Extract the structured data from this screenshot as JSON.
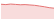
{
  "chart_data": {
    "type": "line",
    "categories": [
      null,
      null,
      null,
      null,
      null,
      null,
      null,
      null,
      null,
      null,
      null,
      null
    ],
    "values": [
      8.2,
      8.0,
      8.3,
      8.1,
      7.9,
      8.0,
      7.8,
      7.6,
      7.2,
      6.8,
      6.3,
      6.0
    ],
    "color": "#e57373",
    "ylim": [
      0,
      10
    ],
    "grid": false,
    "tick_labels": false
  }
}
